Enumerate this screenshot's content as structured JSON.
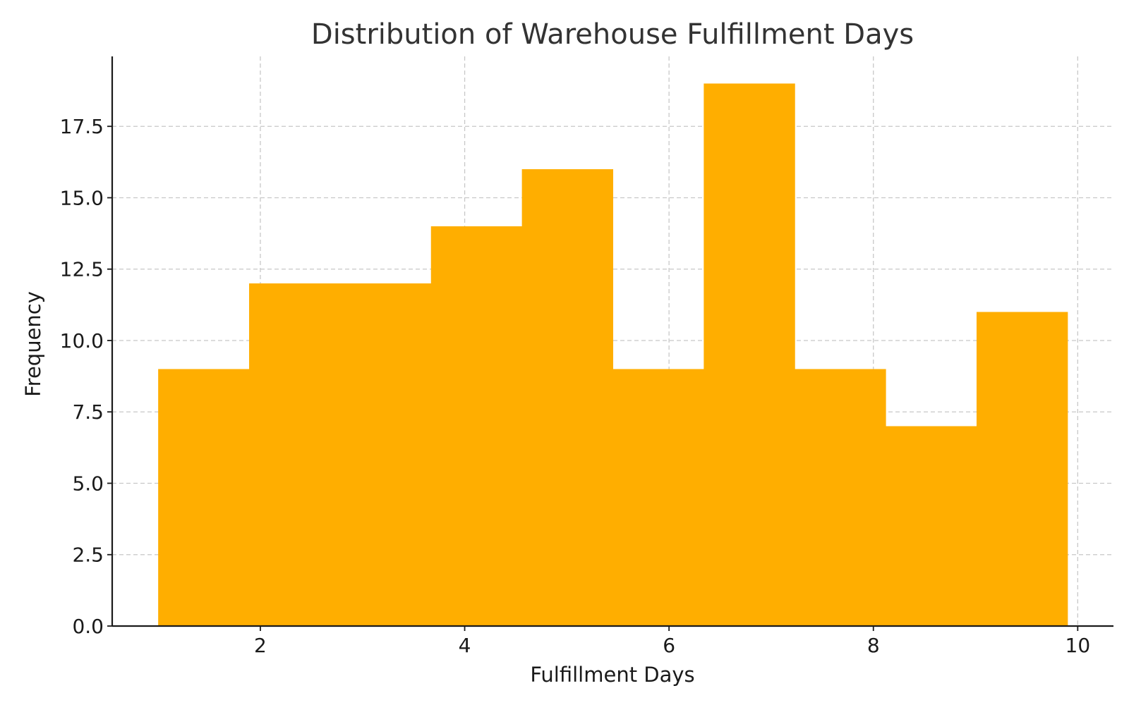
{
  "chart_data": {
    "type": "bar",
    "title": "Distribution of Warehouse Fulfillment Days",
    "xlabel": "Fulfillment Days",
    "ylabel": "Frequency",
    "bar_color": "#FFAE00",
    "bins": [
      {
        "start": 1.0,
        "end": 1.89,
        "count": 9
      },
      {
        "start": 1.89,
        "end": 2.78,
        "count": 12
      },
      {
        "start": 2.78,
        "end": 3.67,
        "count": 12
      },
      {
        "start": 3.67,
        "end": 4.56,
        "count": 14
      },
      {
        "start": 4.56,
        "end": 5.45,
        "count": 16
      },
      {
        "start": 5.45,
        "end": 6.34,
        "count": 9
      },
      {
        "start": 6.34,
        "end": 7.23,
        "count": 19
      },
      {
        "start": 7.23,
        "end": 8.12,
        "count": 9
      },
      {
        "start": 8.12,
        "end": 9.01,
        "count": 7
      },
      {
        "start": 9.01,
        "end": 9.9,
        "count": 11
      }
    ],
    "xlim": [
      0.55,
      10.35
    ],
    "ylim": [
      0,
      19.95
    ],
    "x_ticks": [
      {
        "value": 2,
        "label": "2"
      },
      {
        "value": 4,
        "label": "4"
      },
      {
        "value": 6,
        "label": "6"
      },
      {
        "value": 8,
        "label": "8"
      },
      {
        "value": 10,
        "label": "10"
      }
    ],
    "y_ticks": [
      {
        "value": 0,
        "label": "0.0"
      },
      {
        "value": 2.5,
        "label": "2.5"
      },
      {
        "value": 5,
        "label": "5.0"
      },
      {
        "value": 7.5,
        "label": "7.5"
      },
      {
        "value": 10,
        "label": "10.0"
      },
      {
        "value": 12.5,
        "label": "12.5"
      },
      {
        "value": 15,
        "label": "15.0"
      },
      {
        "value": 17.5,
        "label": "17.5"
      }
    ],
    "grid": true
  }
}
